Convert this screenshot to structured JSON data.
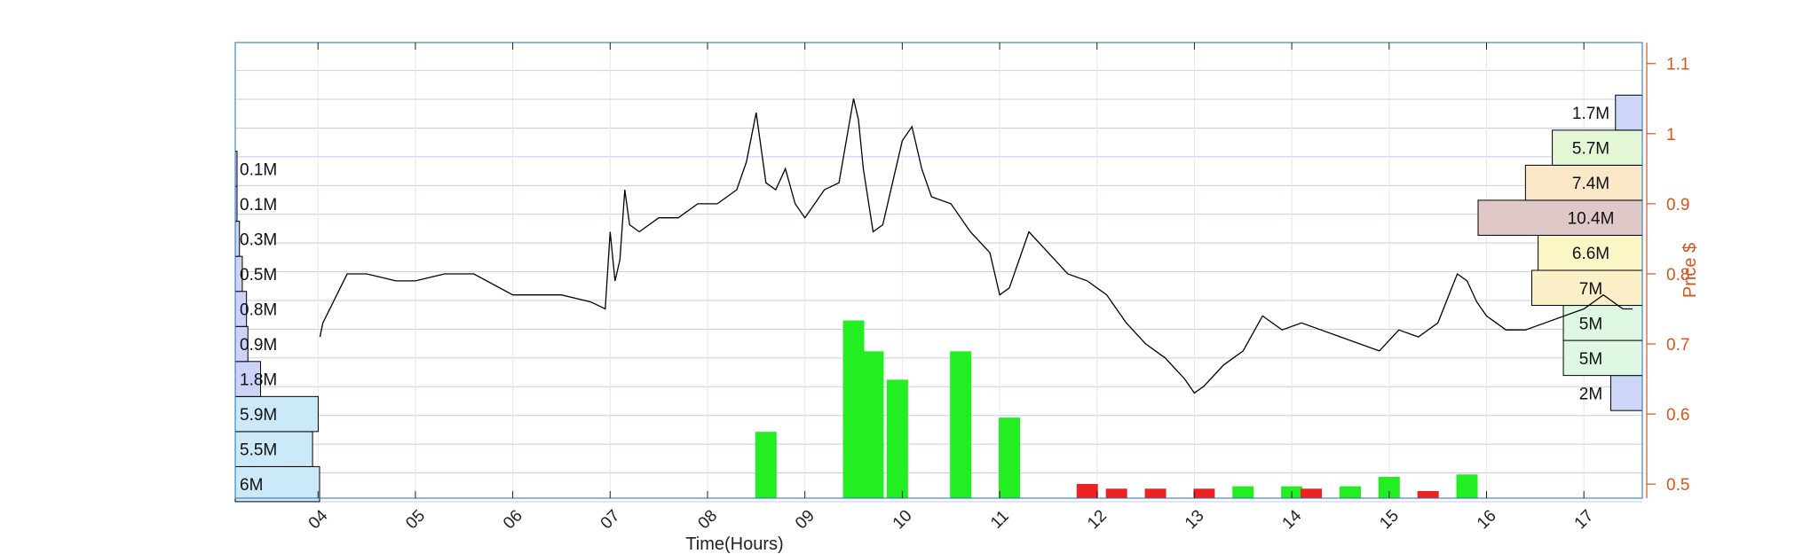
{
  "chart_data": {
    "type": "line",
    "xlabel": "Time(Hours)",
    "ylabel": "Price $",
    "x_range": [
      3.15,
      17.6
    ],
    "ylim": [
      0.48,
      1.13
    ],
    "x_ticks": [
      "04",
      "05",
      "06",
      "07",
      "08",
      "09",
      "10",
      "11",
      "12",
      "13",
      "14",
      "15",
      "16",
      "17"
    ],
    "y_ticks": [
      0.5,
      0.6,
      0.7,
      0.8,
      0.9,
      1,
      1.1
    ],
    "grid": true,
    "colors": {
      "price_line": "#000000",
      "right_axis": "#d9541a",
      "grid": "#c8c8f0",
      "volume_up": "#22ee22",
      "volume_down": "#ee2222"
    },
    "price_series": {
      "name": "Price",
      "x": [
        4.02,
        4.05,
        4.3,
        4.5,
        4.8,
        5.0,
        5.3,
        5.6,
        6.0,
        6.5,
        6.8,
        6.95,
        7.0,
        7.05,
        7.1,
        7.15,
        7.2,
        7.3,
        7.5,
        7.7,
        7.9,
        8.1,
        8.3,
        8.4,
        8.5,
        8.6,
        8.7,
        8.8,
        8.9,
        9.0,
        9.2,
        9.35,
        9.5,
        9.55,
        9.6,
        9.7,
        9.8,
        9.9,
        10.0,
        10.1,
        10.2,
        10.3,
        10.5,
        10.7,
        10.9,
        11.0,
        11.1,
        11.3,
        11.5,
        11.7,
        11.9,
        12.0,
        12.1,
        12.3,
        12.5,
        12.7,
        12.9,
        13.0,
        13.1,
        13.3,
        13.5,
        13.7,
        13.9,
        14.1,
        14.3,
        14.5,
        14.7,
        14.9,
        15.1,
        15.3,
        15.5,
        15.7,
        15.8,
        15.9,
        16.0,
        16.1,
        16.2,
        16.4,
        16.6,
        16.8,
        17.0,
        17.1,
        17.2,
        17.3,
        17.4,
        17.5
      ],
      "y": [
        0.71,
        0.73,
        0.8,
        0.8,
        0.79,
        0.79,
        0.8,
        0.8,
        0.77,
        0.77,
        0.76,
        0.75,
        0.86,
        0.79,
        0.82,
        0.92,
        0.87,
        0.86,
        0.88,
        0.88,
        0.9,
        0.9,
        0.92,
        0.96,
        1.03,
        0.93,
        0.92,
        0.95,
        0.9,
        0.88,
        0.92,
        0.93,
        1.05,
        1.02,
        0.95,
        0.86,
        0.87,
        0.93,
        0.99,
        1.01,
        0.95,
        0.91,
        0.9,
        0.86,
        0.83,
        0.77,
        0.78,
        0.86,
        0.83,
        0.8,
        0.79,
        0.78,
        0.77,
        0.73,
        0.7,
        0.68,
        0.65,
        0.63,
        0.64,
        0.67,
        0.69,
        0.74,
        0.72,
        0.73,
        0.72,
        0.71,
        0.7,
        0.69,
        0.72,
        0.71,
        0.73,
        0.8,
        0.79,
        0.76,
        0.74,
        0.73,
        0.72,
        0.72,
        0.73,
        0.74,
        0.75,
        0.76,
        0.77,
        0.76,
        0.75,
        0.75
      ]
    },
    "volume_bars": {
      "x": [
        8.6,
        9.5,
        9.7,
        9.95,
        10.6,
        11.1,
        11.9,
        12.2,
        12.6,
        13.1,
        13.5,
        14.0,
        14.2,
        14.6,
        15.0,
        15.4,
        15.8
      ],
      "height": [
        0.28,
        0.75,
        0.62,
        0.5,
        0.62,
        0.34,
        0.06,
        0.04,
        0.04,
        0.04,
        0.05,
        0.05,
        0.04,
        0.05,
        0.09,
        0.03,
        0.1
      ],
      "direction": [
        "up",
        "up",
        "up",
        "up",
        "up",
        "up",
        "down",
        "down",
        "down",
        "down",
        "up",
        "up",
        "down",
        "up",
        "up",
        "down",
        "up"
      ]
    },
    "left_profile": [
      {
        "price": 0.5,
        "value": 6,
        "label": "6M",
        "color": "#cce9f9"
      },
      {
        "price": 0.55,
        "value": 5.5,
        "label": "5.5M",
        "color": "#cce9f9"
      },
      {
        "price": 0.6,
        "value": 5.9,
        "label": "5.9M",
        "color": "#cce9f9"
      },
      {
        "price": 0.65,
        "value": 1.8,
        "label": "1.8M",
        "color": "#cfd2f8"
      },
      {
        "price": 0.7,
        "value": 0.9,
        "label": "0.9M",
        "color": "#cfd2f8"
      },
      {
        "price": 0.75,
        "value": 0.8,
        "label": "0.8M",
        "color": "#cfd2f8"
      },
      {
        "price": 0.8,
        "value": 0.5,
        "label": "0.5M",
        "color": "#cfd2f8"
      },
      {
        "price": 0.85,
        "value": 0.3,
        "label": "0.3M",
        "color": "#cfd2f8"
      },
      {
        "price": 0.9,
        "value": 0.1,
        "label": "0.1M",
        "color": "#cfd2f8"
      },
      {
        "price": 0.95,
        "value": 0.1,
        "label": "0.1M",
        "color": "#cfd2f8"
      }
    ],
    "right_profile": [
      {
        "price": 0.63,
        "value": 2,
        "label": "2M",
        "color": "#cdd6f6"
      },
      {
        "price": 0.68,
        "value": 5,
        "label": "5M",
        "color": "#dff8e4"
      },
      {
        "price": 0.73,
        "value": 5,
        "label": "5M",
        "color": "#dff8e4"
      },
      {
        "price": 0.78,
        "value": 7,
        "label": "7M",
        "color": "#fbf0c8"
      },
      {
        "price": 0.83,
        "value": 6.6,
        "label": "6.6M",
        "color": "#fbf6c6"
      },
      {
        "price": 0.88,
        "value": 10.4,
        "label": "10.4M",
        "color": "#e0c8c8"
      },
      {
        "price": 0.93,
        "value": 7.4,
        "label": "7.4M",
        "color": "#fbe8c8"
      },
      {
        "price": 0.98,
        "value": 5.7,
        "label": "5.7M",
        "color": "#e4f8d8"
      },
      {
        "price": 1.03,
        "value": 1.7,
        "label": "1.7M",
        "color": "#cdd6f6"
      }
    ]
  }
}
